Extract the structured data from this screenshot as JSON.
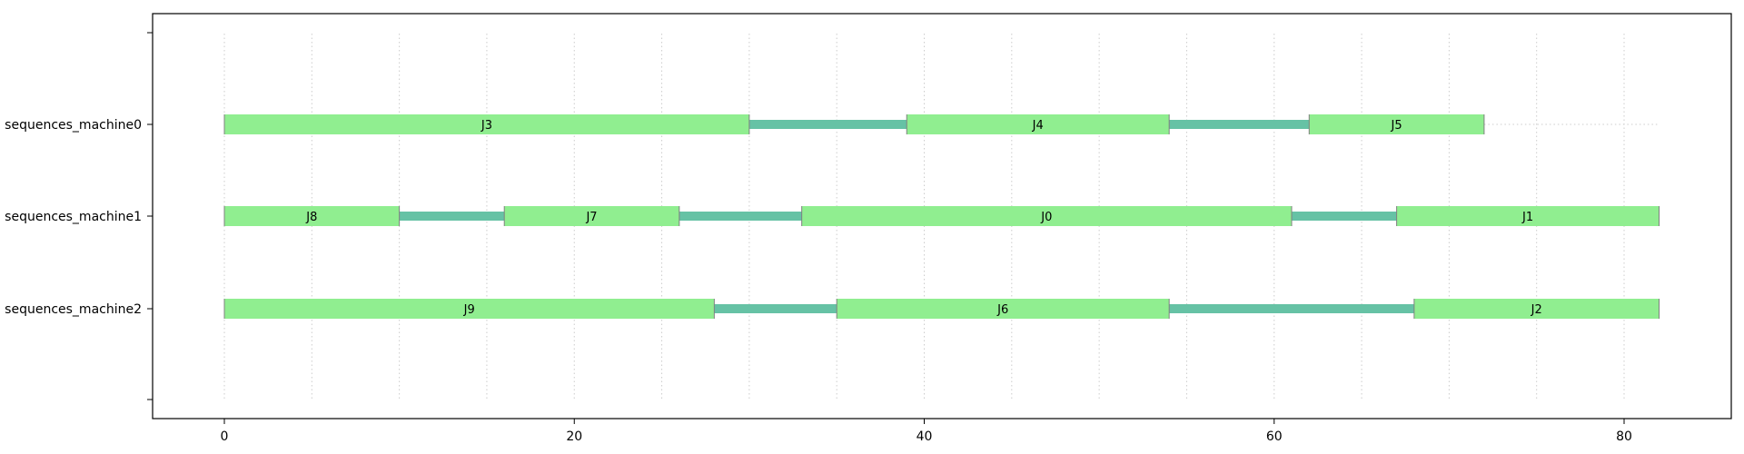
{
  "chart_data": {
    "type": "gantt",
    "xticks": [
      0,
      20,
      40,
      60,
      80
    ],
    "xlim": [
      -4,
      86.5
    ],
    "machines": [
      {
        "label": "sequences_machine0",
        "tasks": [
          {
            "name": "J3",
            "start": 0,
            "end": 30
          },
          {
            "name": "J4",
            "start": 39,
            "end": 54
          },
          {
            "name": "J5",
            "start": 62,
            "end": 72
          }
        ],
        "gaps": [
          [
            30,
            39
          ],
          [
            54,
            62
          ]
        ],
        "trailing_idle": [
          72,
          82
        ]
      },
      {
        "label": "sequences_machine1",
        "tasks": [
          {
            "name": "J8",
            "start": 0,
            "end": 10
          },
          {
            "name": "J7",
            "start": 16,
            "end": 26
          },
          {
            "name": "J0",
            "start": 33,
            "end": 61
          },
          {
            "name": "J1",
            "start": 67,
            "end": 82
          }
        ],
        "gaps": [
          [
            10,
            16
          ],
          [
            26,
            33
          ],
          [
            61,
            67
          ]
        ]
      },
      {
        "label": "sequences_machine2",
        "tasks": [
          {
            "name": "J9",
            "start": 0,
            "end": 28
          },
          {
            "name": "J6",
            "start": 35,
            "end": 54
          },
          {
            "name": "J2",
            "start": 68,
            "end": 82
          }
        ],
        "gaps": [
          [
            28,
            35
          ],
          [
            54,
            68
          ]
        ]
      }
    ],
    "grid_lines": [
      0,
      5,
      10,
      15,
      20,
      25,
      30,
      35,
      40,
      45,
      50,
      55,
      60,
      65,
      70,
      75,
      80
    ],
    "colors": {
      "task_fill": "#90ee90",
      "gap_fill": "#66c2a5",
      "grid": "#cccccc"
    }
  }
}
